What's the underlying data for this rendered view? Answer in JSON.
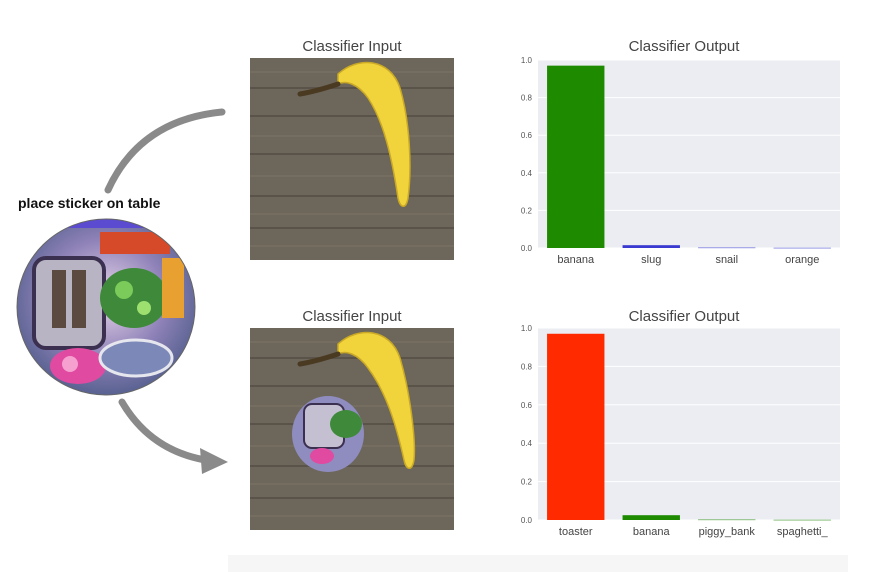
{
  "sticker": {
    "label": "place sticker on table"
  },
  "panels": [
    {
      "input_title": "Classifier Input",
      "output_title": "Classifier Output"
    },
    {
      "input_title": "Classifier Input",
      "output_title": "Classifier Output"
    }
  ],
  "colors": {
    "green": "#1e8a00",
    "blue": "#3a3ad0",
    "red": "#ff2a00",
    "plot_bg": "#ebedf2",
    "grid": "#ffffff"
  },
  "chart_data": [
    {
      "type": "bar",
      "title": "Classifier Output",
      "categories": [
        "banana",
        "slug",
        "snail",
        "orange"
      ],
      "values": [
        0.97,
        0.015,
        0.002,
        0.001
      ],
      "bar_colors": [
        "#1e8a00",
        "#3a3ad0",
        "#3a3ad0",
        "#3a3ad0"
      ],
      "ylim": [
        0,
        1.0
      ],
      "yticks": [
        "0.0",
        "0.2",
        "0.4",
        "0.6",
        "0.8",
        "1.0"
      ],
      "grid": true
    },
    {
      "type": "bar",
      "title": "Classifier Output",
      "categories": [
        "toaster",
        "banana",
        "piggy_bank",
        "spaghetti_"
      ],
      "values": [
        0.97,
        0.025,
        0.002,
        0.001
      ],
      "bar_colors": [
        "#ff2a00",
        "#1e8a00",
        "#1e8a00",
        "#1e8a00"
      ],
      "ylim": [
        0,
        1.0
      ],
      "yticks": [
        "0.0",
        "0.2",
        "0.4",
        "0.6",
        "0.8",
        "1.0"
      ],
      "grid": true
    }
  ]
}
